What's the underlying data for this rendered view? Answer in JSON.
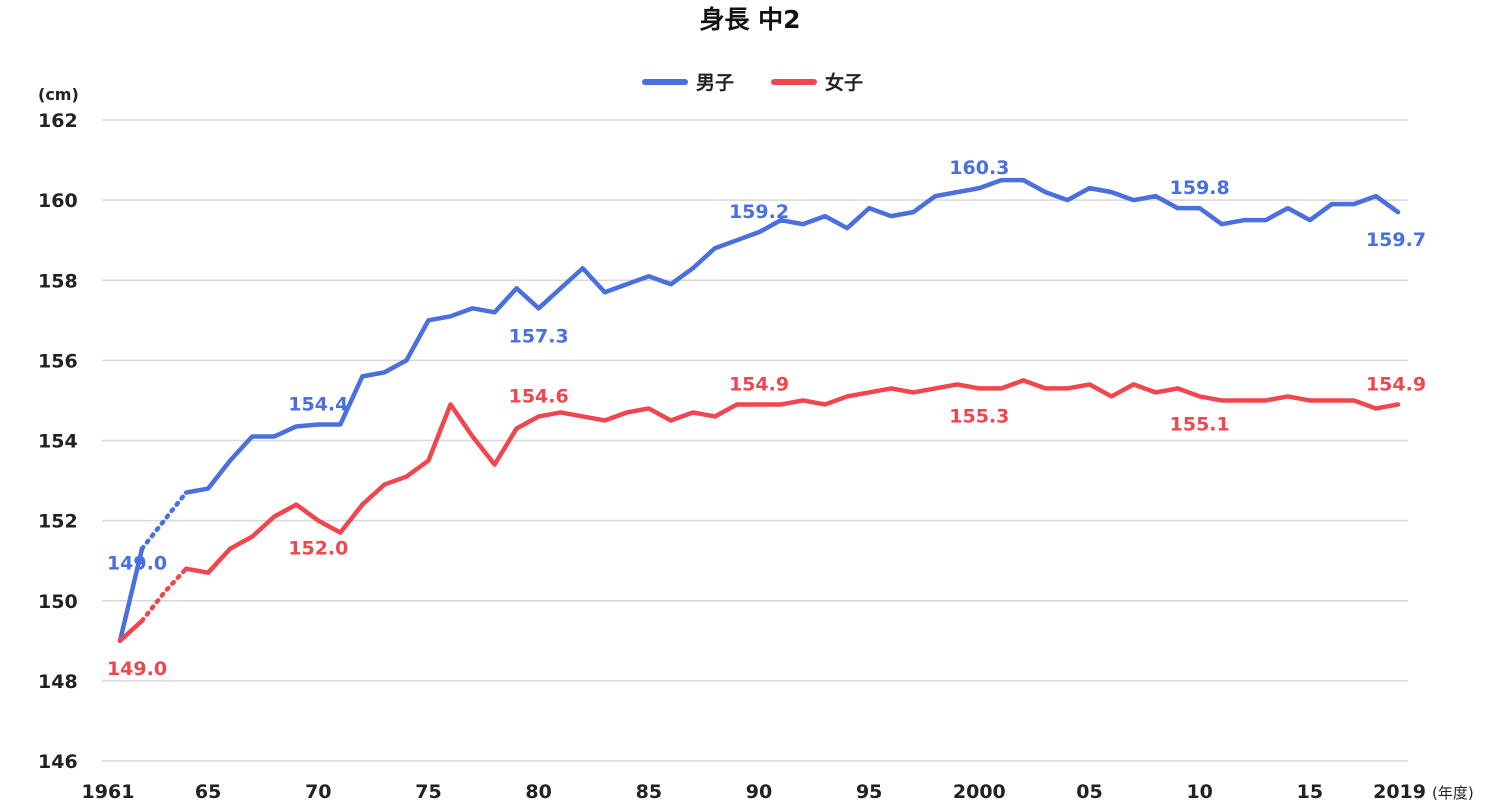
{
  "chart_data": {
    "type": "line",
    "title": "身長 中2",
    "ylabel": "(cm)",
    "xlabel": "(年度)",
    "ylim": [
      146,
      162
    ],
    "xlim": [
      1961,
      2019
    ],
    "yticks": [
      "146",
      "148",
      "150",
      "152",
      "154",
      "156",
      "158",
      "160",
      "162"
    ],
    "xticks": [
      {
        "x": 1961,
        "label": "1961"
      },
      {
        "x": 1965,
        "label": "65"
      },
      {
        "x": 1970,
        "label": "70"
      },
      {
        "x": 1975,
        "label": "75"
      },
      {
        "x": 1980,
        "label": "80"
      },
      {
        "x": 1985,
        "label": "85"
      },
      {
        "x": 1990,
        "label": "90"
      },
      {
        "x": 1995,
        "label": "95"
      },
      {
        "x": 2000,
        "label": "2000"
      },
      {
        "x": 2005,
        "label": "05"
      },
      {
        "x": 2010,
        "label": "10"
      },
      {
        "x": 2015,
        "label": "15"
      },
      {
        "x": 2019,
        "label": "2019"
      }
    ],
    "grid": true,
    "legend_position": "top-center",
    "series": [
      {
        "name": "男子",
        "color": "#4a70e0",
        "x": [
          1961,
          1962,
          1963,
          1964,
          1965,
          1966,
          1967,
          1968,
          1969,
          1970,
          1971,
          1972,
          1973,
          1974,
          1975,
          1976,
          1977,
          1978,
          1979,
          1980,
          1981,
          1982,
          1983,
          1984,
          1985,
          1986,
          1987,
          1988,
          1989,
          1990,
          1991,
          1992,
          1993,
          1994,
          1995,
          1996,
          1997,
          1998,
          1999,
          2000,
          2001,
          2002,
          2003,
          2004,
          2005,
          2006,
          2007,
          2008,
          2009,
          2010,
          2011,
          2012,
          2013,
          2014,
          2015,
          2016,
          2017,
          2018,
          2019
        ],
        "y": [
          149.0,
          151.3,
          152.0,
          152.7,
          152.8,
          153.5,
          154.1,
          154.1,
          154.35,
          154.4,
          154.4,
          155.6,
          155.7,
          156.0,
          157.0,
          157.1,
          157.3,
          157.2,
          157.8,
          157.3,
          157.8,
          158.3,
          157.7,
          157.9,
          158.1,
          157.9,
          158.3,
          158.8,
          159.0,
          159.2,
          159.5,
          159.4,
          159.6,
          159.3,
          159.8,
          159.6,
          159.7,
          160.1,
          160.2,
          160.3,
          160.5,
          160.5,
          160.2,
          160.0,
          160.3,
          160.2,
          160.0,
          160.1,
          159.8,
          159.8,
          159.4,
          159.5,
          159.5,
          159.8,
          159.5,
          159.9,
          159.9,
          160.1,
          159.7
        ],
        "dotted_until": 1964,
        "data_labels": [
          {
            "x": 1961,
            "text": "149.0"
          },
          {
            "x": 1970,
            "text": "154.4"
          },
          {
            "x": 1980,
            "text": "157.3"
          },
          {
            "x": 1990,
            "text": "159.2"
          },
          {
            "x": 2000,
            "text": "160.3"
          },
          {
            "x": 2010,
            "text": "159.8"
          },
          {
            "x": 2019,
            "text": "159.7"
          }
        ]
      },
      {
        "name": "女子",
        "color": "#f0474f",
        "x": [
          1961,
          1962,
          1963,
          1964,
          1965,
          1966,
          1967,
          1968,
          1969,
          1970,
          1971,
          1972,
          1973,
          1974,
          1975,
          1976,
          1977,
          1978,
          1979,
          1980,
          1981,
          1982,
          1983,
          1984,
          1985,
          1986,
          1987,
          1988,
          1989,
          1990,
          1991,
          1992,
          1993,
          1994,
          1995,
          1996,
          1997,
          1998,
          1999,
          2000,
          2001,
          2002,
          2003,
          2004,
          2005,
          2006,
          2007,
          2008,
          2009,
          2010,
          2011,
          2012,
          2013,
          2014,
          2015,
          2016,
          2017,
          2018,
          2019
        ],
        "y": [
          149.0,
          149.5,
          150.2,
          150.8,
          150.7,
          151.3,
          151.6,
          152.1,
          152.4,
          152.0,
          151.7,
          152.4,
          152.9,
          153.1,
          153.5,
          154.9,
          154.1,
          153.4,
          154.3,
          154.6,
          154.7,
          154.6,
          154.5,
          154.7,
          154.8,
          154.5,
          154.7,
          154.6,
          154.9,
          154.9,
          154.9,
          155.0,
          154.9,
          155.1,
          155.2,
          155.3,
          155.2,
          155.3,
          155.4,
          155.3,
          155.3,
          155.5,
          155.3,
          155.3,
          155.4,
          155.1,
          155.4,
          155.2,
          155.3,
          155.1,
          155.0,
          155.0,
          155.0,
          155.1,
          155.0,
          155.0,
          155.0,
          154.8,
          154.9
        ],
        "dotted_until": 1964,
        "data_labels": [
          {
            "x": 1961,
            "text": "149.0"
          },
          {
            "x": 1970,
            "text": "152.0"
          },
          {
            "x": 1980,
            "text": "154.6"
          },
          {
            "x": 1990,
            "text": "154.9"
          },
          {
            "x": 2000,
            "text": "155.3"
          },
          {
            "x": 2010,
            "text": "155.1"
          },
          {
            "x": 2019,
            "text": "154.9"
          }
        ]
      }
    ]
  }
}
